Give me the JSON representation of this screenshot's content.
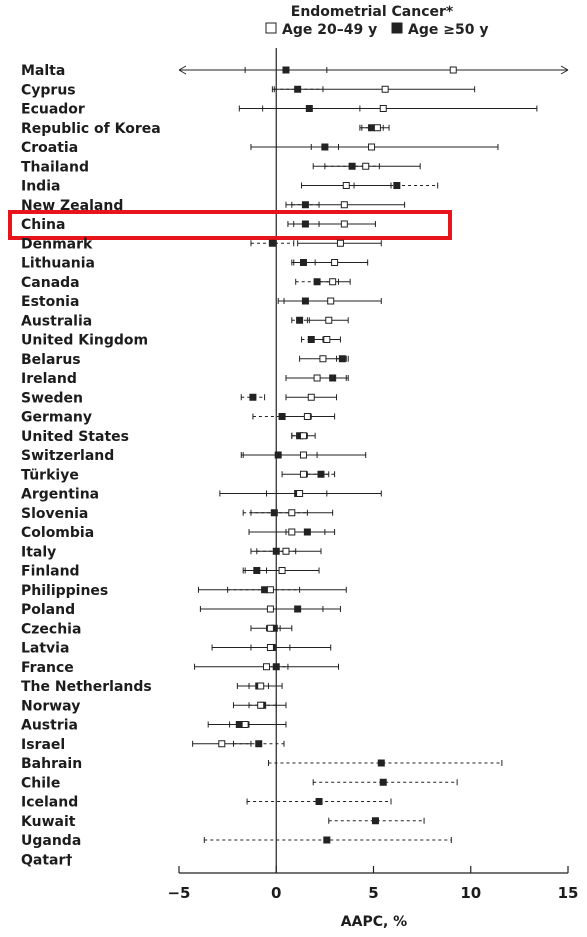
{
  "chart_data": {
    "type": "forest",
    "title": "Endometrial Cancer*",
    "legend": [
      {
        "name": "Age 20–49 y",
        "marker": "open-square",
        "line": "solid"
      },
      {
        "name": "Age ≥50 y",
        "marker": "filled-square",
        "line": "dashed"
      }
    ],
    "xlabel": "AAPC, %",
    "xlim": [
      -5,
      15
    ],
    "xticks": [
      "−5",
      "0",
      "5",
      "10",
      "15"
    ],
    "highlighted_country": "China",
    "rows": [
      {
        "country": "Malta",
        "young": {
          "est": 9.1,
          "lo": -5,
          "hi": 15,
          "arrow_lo": true,
          "arrow_hi": true
        },
        "old": {
          "est": 0.5,
          "lo": -1.6,
          "hi": 2.6
        }
      },
      {
        "country": "Cyprus",
        "young": {
          "est": 5.6,
          "lo": -0.2,
          "hi": 10.2
        },
        "old": {
          "est": 1.1,
          "lo": -0.1,
          "hi": 2.4
        }
      },
      {
        "country": "Ecuador",
        "young": {
          "est": 5.5,
          "lo": -1.9,
          "hi": 13.4
        },
        "old": {
          "est": 1.7,
          "lo": -0.7,
          "hi": 4.3
        }
      },
      {
        "country": "Republic of Korea",
        "young": {
          "est": 5.2,
          "lo": 4.4,
          "hi": 5.8
        },
        "old": {
          "est": 4.9,
          "lo": 4.3,
          "hi": 5.5
        }
      },
      {
        "country": "Croatia",
        "young": {
          "est": 4.9,
          "lo": -1.3,
          "hi": 11.4
        },
        "old": {
          "est": 2.5,
          "lo": 1.8,
          "hi": 3.2
        }
      },
      {
        "country": "Thailand",
        "young": {
          "est": 4.6,
          "lo": 1.9,
          "hi": 7.4
        },
        "old": {
          "est": 3.9,
          "lo": 2.5,
          "hi": 5.3
        }
      },
      {
        "country": "India",
        "young": {
          "est": 3.6,
          "lo": 1.3,
          "hi": 5.9
        },
        "old": {
          "est": 6.2,
          "lo": 4.0,
          "hi": 8.3
        }
      },
      {
        "country": "New Zealand",
        "young": {
          "est": 3.5,
          "lo": 0.5,
          "hi": 6.6
        },
        "old": {
          "est": 1.5,
          "lo": 0.8,
          "hi": 2.2
        }
      },
      {
        "country": "China",
        "young": {
          "est": 3.5,
          "lo": 0.6,
          "hi": 5.1
        },
        "old": {
          "est": 1.5,
          "lo": 0.9,
          "hi": 2.2
        }
      },
      {
        "country": "Denmark",
        "young": {
          "est": 3.3,
          "lo": 1.1,
          "hi": 5.4
        },
        "old": {
          "est": -0.2,
          "lo": -1.3,
          "hi": 0.9
        }
      },
      {
        "country": "Lithuania",
        "young": {
          "est": 3.0,
          "lo": 0.8,
          "hi": 4.7
        },
        "old": {
          "est": 1.4,
          "lo": 0.9,
          "hi": 2.0
        }
      },
      {
        "country": "Canada",
        "young": {
          "est": 2.9,
          "lo": 2.1,
          "hi": 3.8
        },
        "old": {
          "est": 2.1,
          "lo": 1.0,
          "hi": 3.2
        }
      },
      {
        "country": "Estonia",
        "young": {
          "est": 2.8,
          "lo": 0.1,
          "hi": 5.4
        },
        "old": {
          "est": 1.5,
          "lo": 0.4,
          "hi": 2.7
        }
      },
      {
        "country": "Australia",
        "young": {
          "est": 2.7,
          "lo": 1.6,
          "hi": 3.7
        },
        "old": {
          "est": 1.2,
          "lo": 0.8,
          "hi": 1.7
        }
      },
      {
        "country": "United Kingdom",
        "young": {
          "est": 2.6,
          "lo": 1.9,
          "hi": 3.3
        },
        "old": {
          "est": 1.8,
          "lo": 1.3,
          "hi": 2.4
        }
      },
      {
        "country": "Belarus",
        "young": {
          "est": 2.4,
          "lo": 1.2,
          "hi": 3.6
        },
        "old": {
          "est": 3.4,
          "lo": 3.1,
          "hi": 3.7
        }
      },
      {
        "country": "Ireland",
        "young": {
          "est": 2.1,
          "lo": 0.5,
          "hi": 3.7
        },
        "old": {
          "est": 2.9,
          "lo": 2.2,
          "hi": 3.6
        }
      },
      {
        "country": "Sweden",
        "young": {
          "est": 1.8,
          "lo": 0.5,
          "hi": 3.1
        },
        "old": {
          "est": -1.2,
          "lo": -1.8,
          "hi": -0.6
        }
      },
      {
        "country": "Germany",
        "young": {
          "est": 1.6,
          "lo": 0.2,
          "hi": 3.0
        },
        "old": {
          "est": 0.3,
          "lo": -1.2,
          "hi": 1.8
        }
      },
      {
        "country": "United States",
        "young": {
          "est": 1.4,
          "lo": 0.8,
          "hi": 2.0
        },
        "old": {
          "est": 1.2,
          "lo": 0.8,
          "hi": 1.6
        }
      },
      {
        "country": "Switzerland",
        "young": {
          "est": 1.4,
          "lo": -1.7,
          "hi": 4.6
        },
        "old": {
          "est": 0.1,
          "lo": -1.8,
          "hi": 2.1
        }
      },
      {
        "country": "Türkiye",
        "young": {
          "est": 1.4,
          "lo": 0.3,
          "hi": 2.7
        },
        "old": {
          "est": 2.3,
          "lo": 1.6,
          "hi": 3.0
        }
      },
      {
        "country": "Argentina",
        "young": {
          "est": 1.2,
          "lo": -2.9,
          "hi": 5.4
        },
        "old": {
          "est": 1.1,
          "lo": -0.5,
          "hi": 2.6
        }
      },
      {
        "country": "Slovenia",
        "young": {
          "est": 0.8,
          "lo": -1.3,
          "hi": 2.9
        },
        "old": {
          "est": -0.1,
          "lo": -1.7,
          "hi": 1.6
        }
      },
      {
        "country": "Colombia",
        "young": {
          "est": 0.8,
          "lo": -1.4,
          "hi": 3.0
        },
        "old": {
          "est": 1.6,
          "lo": 0.5,
          "hi": 2.5
        }
      },
      {
        "country": "Italy",
        "young": {
          "est": 0.5,
          "lo": -1.3,
          "hi": 2.3
        },
        "old": {
          "est": 0.0,
          "lo": -1.0,
          "hi": 1.0
        }
      },
      {
        "country": "Finland",
        "young": {
          "est": 0.3,
          "lo": -1.6,
          "hi": 2.2
        },
        "old": {
          "est": -1.0,
          "lo": -1.7,
          "hi": -0.5
        }
      },
      {
        "country": "Philippines",
        "young": {
          "est": -0.3,
          "lo": -4.0,
          "hi": 3.6
        },
        "old": {
          "est": -0.6,
          "lo": -2.5,
          "hi": 1.2
        }
      },
      {
        "country": "Poland",
        "young": {
          "est": -0.3,
          "lo": -3.9,
          "hi": 3.3
        },
        "old": {
          "est": 1.1,
          "lo": -0.4,
          "hi": 2.4
        }
      },
      {
        "country": "Czechia",
        "young": {
          "est": -0.3,
          "lo": -1.3,
          "hi": 0.8
        },
        "old": {
          "est": -0.1,
          "lo": -0.5,
          "hi": 0.2
        }
      },
      {
        "country": "Latvia",
        "young": {
          "est": -0.3,
          "lo": -3.3,
          "hi": 2.8
        },
        "old": {
          "est": -0.2,
          "lo": -1.3,
          "hi": 0.7
        }
      },
      {
        "country": "France",
        "young": {
          "est": -0.5,
          "lo": -4.2,
          "hi": 3.2
        },
        "old": {
          "est": 0.0,
          "lo": -0.6,
          "hi": 0.6
        }
      },
      {
        "country": "The Netherlands",
        "young": {
          "est": -0.8,
          "lo": -2.0,
          "hi": 0.3
        },
        "old": {
          "est": -0.9,
          "lo": -1.4,
          "hi": -0.4
        }
      },
      {
        "country": "Norway",
        "young": {
          "est": -0.8,
          "lo": -2.2,
          "hi": 0.5
        },
        "old": {
          "est": -0.7,
          "lo": -1.4,
          "hi": 0.0
        }
      },
      {
        "country": "Austria",
        "young": {
          "est": -1.6,
          "lo": -3.5,
          "hi": 0.5
        },
        "old": {
          "est": -1.9,
          "lo": -2.4,
          "hi": -1.4
        }
      },
      {
        "country": "Israel",
        "young": {
          "est": -2.8,
          "lo": -4.3,
          "hi": -1.3
        },
        "old": {
          "est": -0.9,
          "lo": -2.2,
          "hi": 0.4
        }
      },
      {
        "country": "Bahrain",
        "young": null,
        "old": {
          "est": 5.4,
          "lo": -0.4,
          "hi": 11.6
        }
      },
      {
        "country": "Chile",
        "young": null,
        "old": {
          "est": 5.5,
          "lo": 1.9,
          "hi": 9.3
        }
      },
      {
        "country": "Iceland",
        "young": null,
        "old": {
          "est": 2.2,
          "lo": -1.5,
          "hi": 5.9
        }
      },
      {
        "country": "Kuwait",
        "young": null,
        "old": {
          "est": 5.1,
          "lo": 2.7,
          "hi": 7.6
        }
      },
      {
        "country": "Uganda",
        "young": null,
        "old": {
          "est": 2.6,
          "lo": -3.7,
          "hi": 9.0
        }
      },
      {
        "country": "Qatar†",
        "young": null,
        "old": null
      }
    ]
  }
}
